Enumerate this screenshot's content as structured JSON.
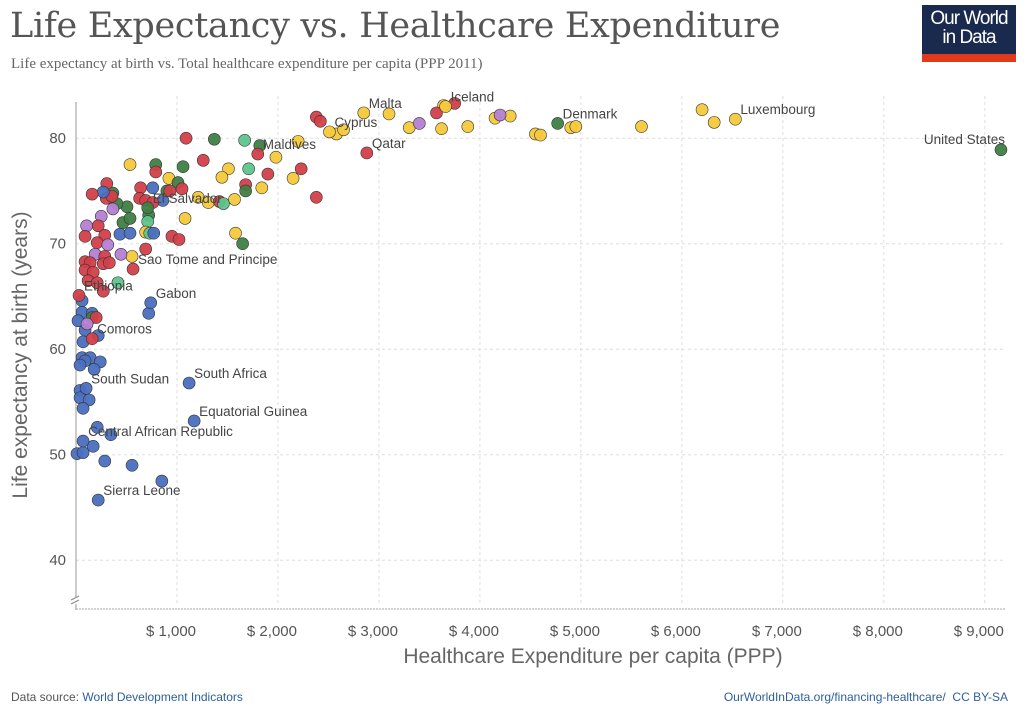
{
  "header": {
    "title": "Life Expectancy vs. Healthcare Expenditure",
    "subtitle": "Life expectancy at birth vs. Total healthcare expenditure per capita (PPP 2011)",
    "logo_text": "Our World in Data"
  },
  "footer": {
    "source_prefix": "Data source: ",
    "source_link": "World Development Indicators",
    "url": "OurWorldInData.org/financing-healthcare/",
    "license": "CC BY-SA"
  },
  "chart_data": {
    "type": "scatter",
    "title": "Life Expectancy vs. Healthcare Expenditure",
    "xlabel": "Healthcare Expenditure per capita (PPP)",
    "ylabel": "Life expectancy at birth (years)",
    "xlim": [
      0,
      9200
    ],
    "ylim": [
      35,
      84
    ],
    "x_ticks": [
      1000,
      2000,
      3000,
      4000,
      5000,
      6000,
      7000,
      8000,
      9000
    ],
    "x_tick_labels": [
      "$ 1,000",
      "$ 2,000",
      "$ 3,000",
      "$ 4,000",
      "$ 5,000",
      "$ 6,000",
      "$ 7,000",
      "$ 8,000",
      "$ 9,000"
    ],
    "y_ticks": [
      40,
      50,
      60,
      70,
      80
    ],
    "y_tick_labels": [
      "40",
      "50",
      "60",
      "70",
      "80"
    ],
    "y_axis_break": true,
    "grid": true,
    "colors": {
      "B": "#4a6fc0",
      "R": "#d33f49",
      "G": "#3f7f45",
      "L": "#5dc48b",
      "Y": "#f5c93b",
      "P": "#b57fd3"
    },
    "labeled_points": [
      {
        "label": "United States",
        "x": 9160,
        "y": 78.9,
        "c": "G"
      },
      {
        "label": "Luxembourg",
        "x": 6530,
        "y": 81.8,
        "c": "Y"
      },
      {
        "label": "Denmark",
        "x": 4770,
        "y": 81.4,
        "c": "G"
      },
      {
        "label": "Iceland",
        "x": 3660,
        "y": 83.0,
        "c": "Y"
      },
      {
        "label": "Malta",
        "x": 2850,
        "y": 82.4,
        "c": "Y"
      },
      {
        "label": "Qatar",
        "x": 2880,
        "y": 78.6,
        "c": "R"
      },
      {
        "label": "Cyprus",
        "x": 2510,
        "y": 80.6,
        "c": "Y"
      },
      {
        "label": "Maldives",
        "x": 1800,
        "y": 78.5,
        "c": "R"
      },
      {
        "label": "El Salvador",
        "x": 710,
        "y": 73.4,
        "c": "G"
      },
      {
        "label": "Sao Tome and Principe",
        "x": 565,
        "y": 67.6,
        "c": "R"
      },
      {
        "label": "Ethiopia",
        "x": 30,
        "y": 65.1,
        "c": "R"
      },
      {
        "label": "Gabon",
        "x": 740,
        "y": 64.4,
        "c": "B"
      },
      {
        "label": "Comoros",
        "x": 160,
        "y": 61.0,
        "c": "R"
      },
      {
        "label": "South Africa",
        "x": 1120,
        "y": 56.8,
        "c": "B"
      },
      {
        "label": "Equatorial Guinea",
        "x": 1170,
        "y": 53.2,
        "c": "B"
      },
      {
        "label": "South Sudan",
        "x": 100,
        "y": 56.3,
        "c": "B"
      },
      {
        "label": "Central African Republic",
        "x": 70,
        "y": 51.3,
        "c": "B"
      },
      {
        "label": "Sierra Leone",
        "x": 220,
        "y": 45.7,
        "c": "B"
      }
    ],
    "points": [
      [
        3100,
        82.3,
        "Y"
      ],
      [
        3300,
        81.0,
        "Y"
      ],
      [
        3640,
        83.1,
        "Y"
      ],
      [
        3620,
        80.9,
        "Y"
      ],
      [
        3880,
        81.1,
        "Y"
      ],
      [
        4150,
        81.9,
        "Y"
      ],
      [
        4300,
        82.1,
        "Y"
      ],
      [
        4550,
        80.4,
        "Y"
      ],
      [
        4600,
        80.3,
        "Y"
      ],
      [
        4900,
        81.0,
        "Y"
      ],
      [
        4950,
        81.1,
        "Y"
      ],
      [
        5600,
        81.1,
        "Y"
      ],
      [
        6200,
        82.7,
        "Y"
      ],
      [
        6320,
        81.5,
        "Y"
      ],
      [
        2580,
        80.4,
        "Y"
      ],
      [
        2650,
        80.8,
        "Y"
      ],
      [
        2200,
        79.7,
        "Y"
      ],
      [
        2380,
        82.0,
        "R"
      ],
      [
        2420,
        81.6,
        "R"
      ],
      [
        3570,
        82.4,
        "R"
      ],
      [
        3750,
        83.3,
        "R"
      ],
      [
        3400,
        81.4,
        "P"
      ],
      [
        4200,
        82.2,
        "P"
      ],
      [
        1090,
        80.0,
        "R"
      ],
      [
        1370,
        79.9,
        "G"
      ],
      [
        1670,
        79.8,
        "L"
      ],
      [
        1820,
        79.3,
        "G"
      ],
      [
        1980,
        78.2,
        "Y"
      ],
      [
        1260,
        77.9,
        "R"
      ],
      [
        535,
        77.5,
        "Y"
      ],
      [
        790,
        77.5,
        "G"
      ],
      [
        1060,
        77.3,
        "G"
      ],
      [
        790,
        76.8,
        "R"
      ],
      [
        920,
        76.2,
        "Y"
      ],
      [
        1010,
        75.8,
        "G"
      ],
      [
        1050,
        75.2,
        "R"
      ],
      [
        1510,
        77.1,
        "Y"
      ],
      [
        1445,
        76.3,
        "Y"
      ],
      [
        1710,
        77.1,
        "L"
      ],
      [
        1900,
        76.6,
        "R"
      ],
      [
        1680,
        75.6,
        "R"
      ],
      [
        1680,
        75.0,
        "G"
      ],
      [
        1840,
        75.3,
        "Y"
      ],
      [
        2150,
        76.2,
        "Y"
      ],
      [
        2230,
        77.1,
        "R"
      ],
      [
        2380,
        74.4,
        "R"
      ],
      [
        1210,
        74.4,
        "Y"
      ],
      [
        1310,
        73.9,
        "Y"
      ],
      [
        1420,
        74.0,
        "R"
      ],
      [
        1460,
        73.8,
        "L"
      ],
      [
        1570,
        74.2,
        "Y"
      ],
      [
        1080,
        72.4,
        "Y"
      ],
      [
        1580,
        71.0,
        "Y"
      ],
      [
        1650,
        70.0,
        "G"
      ],
      [
        950,
        70.7,
        "R"
      ],
      [
        1020,
        70.4,
        "R"
      ],
      [
        690,
        69.5,
        "R"
      ],
      [
        555,
        68.8,
        "Y"
      ],
      [
        445,
        69.0,
        "P"
      ],
      [
        415,
        66.3,
        "L"
      ],
      [
        760,
        75.3,
        "B"
      ],
      [
        860,
        74.1,
        "B"
      ],
      [
        900,
        75.0,
        "G"
      ],
      [
        930,
        75.0,
        "R"
      ],
      [
        640,
        75.3,
        "R"
      ],
      [
        630,
        74.3,
        "R"
      ],
      [
        690,
        74.1,
        "R"
      ],
      [
        760,
        73.9,
        "R"
      ],
      [
        720,
        72.7,
        "G"
      ],
      [
        710,
        72.1,
        "L"
      ],
      [
        690,
        71.1,
        "Y"
      ],
      [
        730,
        71.0,
        "L"
      ],
      [
        770,
        71.0,
        "B"
      ],
      [
        435,
        70.9,
        "B"
      ],
      [
        535,
        71.0,
        "B"
      ],
      [
        465,
        72.0,
        "G"
      ],
      [
        535,
        72.4,
        "G"
      ],
      [
        505,
        73.5,
        "G"
      ],
      [
        405,
        73.8,
        "G"
      ],
      [
        365,
        74.8,
        "G"
      ],
      [
        305,
        75.7,
        "R"
      ],
      [
        300,
        74.3,
        "R"
      ],
      [
        355,
        74.5,
        "R"
      ],
      [
        270,
        74.9,
        "B"
      ],
      [
        160,
        74.7,
        "R"
      ],
      [
        250,
        72.6,
        "P"
      ],
      [
        365,
        73.3,
        "P"
      ],
      [
        105,
        71.7,
        "P"
      ],
      [
        220,
        71.7,
        "R"
      ],
      [
        90,
        70.7,
        "R"
      ],
      [
        285,
        70.8,
        "R"
      ],
      [
        210,
        70.1,
        "R"
      ],
      [
        315,
        69.9,
        "P"
      ],
      [
        190,
        69.0,
        "P"
      ],
      [
        285,
        68.8,
        "R"
      ],
      [
        90,
        68.3,
        "R"
      ],
      [
        140,
        68.2,
        "R"
      ],
      [
        270,
        68.1,
        "R"
      ],
      [
        330,
        68.2,
        "R"
      ],
      [
        90,
        67.5,
        "R"
      ],
      [
        170,
        67.3,
        "R"
      ],
      [
        120,
        66.5,
        "R"
      ],
      [
        210,
        66.3,
        "R"
      ],
      [
        270,
        65.5,
        "R"
      ],
      [
        60,
        64.6,
        "B"
      ],
      [
        60,
        63.5,
        "B"
      ],
      [
        20,
        62.7,
        "B"
      ],
      [
        160,
        63.4,
        "B"
      ],
      [
        160,
        63.0,
        "G"
      ],
      [
        200,
        63.0,
        "R"
      ],
      [
        90,
        61.8,
        "B"
      ],
      [
        110,
        62.4,
        "P"
      ],
      [
        220,
        61.3,
        "B"
      ],
      [
        70,
        60.7,
        "B"
      ],
      [
        720,
        63.4,
        "B"
      ],
      [
        60,
        59.2,
        "B"
      ],
      [
        140,
        59.2,
        "B"
      ],
      [
        240,
        58.8,
        "B"
      ],
      [
        90,
        58.9,
        "B"
      ],
      [
        40,
        58.5,
        "B"
      ],
      [
        180,
        58.1,
        "B"
      ],
      [
        40,
        56.1,
        "B"
      ],
      [
        40,
        55.4,
        "B"
      ],
      [
        130,
        55.2,
        "B"
      ],
      [
        70,
        54.4,
        "B"
      ],
      [
        210,
        52.6,
        "B"
      ],
      [
        345,
        51.9,
        "B"
      ],
      [
        170,
        50.8,
        "B"
      ],
      [
        10,
        50.1,
        "B"
      ],
      [
        70,
        50.2,
        "B"
      ],
      [
        285,
        49.4,
        "B"
      ],
      [
        555,
        49.0,
        "B"
      ],
      [
        850,
        47.5,
        "B"
      ]
    ]
  }
}
